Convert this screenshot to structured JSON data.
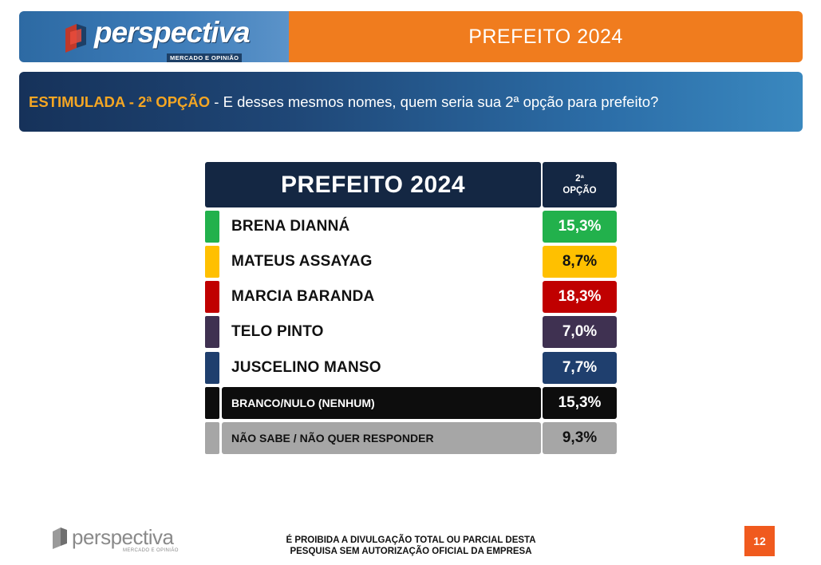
{
  "header": {
    "logo_text": "perspectiva",
    "logo_tagline": "MERCADO E OPINIÃO",
    "title": "PREFEITO 2024"
  },
  "question": {
    "prefix": "ESTIMULADA - 2ª OPÇÃO",
    "separator": " - ",
    "text": "E desses mesmos nomes, quem seria sua 2ª opção para prefeito?"
  },
  "table": {
    "title": "PREFEITO 2024",
    "column_header_line1": "2ª",
    "column_header_line2": "OPÇÃO",
    "rows": [
      {
        "label": "BRENA DIANNÁ",
        "value": "15,3%",
        "color": "#22b14c"
      },
      {
        "label": "MATEUS ASSAYAG",
        "value": "8,7%",
        "color": "#ffc000"
      },
      {
        "label": "MARCIA BARANDA",
        "value": "18,3%",
        "color": "#c00000"
      },
      {
        "label": "TELO PINTO",
        "value": "7,0%",
        "color": "#3f3151"
      },
      {
        "label": "JUSCELINO MANSO",
        "value": "7,7%",
        "color": "#1f3f6e"
      },
      {
        "label": "BRANCO/NULO (NENHUM)",
        "value": "15,3%",
        "color": "#0d0d0d"
      },
      {
        "label": "NÃO SABE / NÃO QUER RESPONDER",
        "value": "9,3%",
        "color": "#a6a6a6"
      }
    ]
  },
  "footer": {
    "logo_text": "perspectiva",
    "logo_tagline": "MERCADO E OPINIÃO",
    "disclaimer_line1": "É PROIBIDA A DIVULGAÇÃO TOTAL OU PARCIAL DESTA",
    "disclaimer_line2": "PESQUISA SEM AUTORIZAÇÃO OFICIAL DA EMPRESA",
    "page_number": "12"
  }
}
